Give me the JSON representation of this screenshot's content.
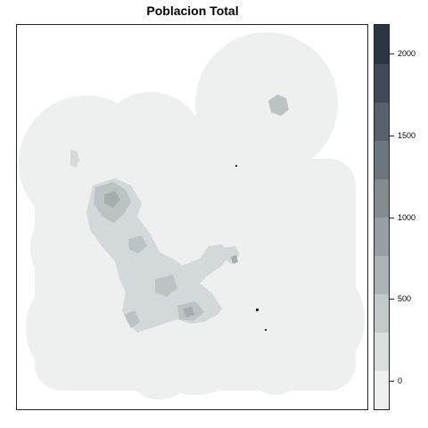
{
  "title": "Poblacion Total",
  "legend": {
    "colors": [
      "#eef0ef",
      "#dadedd",
      "#c3c9c8",
      "#adb4b5",
      "#989fa3",
      "#828b90",
      "#6c767d",
      "#56616b",
      "#404b58",
      "#2b3645"
    ],
    "ticks": [
      {
        "value": 0,
        "label": "0"
      },
      {
        "value": 500,
        "label": "500"
      },
      {
        "value": 1000,
        "label": "1000"
      },
      {
        "value": 1500,
        "label": "1500"
      },
      {
        "value": 2000,
        "label": "2000"
      }
    ],
    "range": [
      -175,
      2175
    ]
  },
  "map_colors": {
    "background": "#eef0ef",
    "low": "#d3d8d8",
    "mid": "#bcc3c4",
    "high": "#a6adb0",
    "peak": "#1f2833"
  }
}
